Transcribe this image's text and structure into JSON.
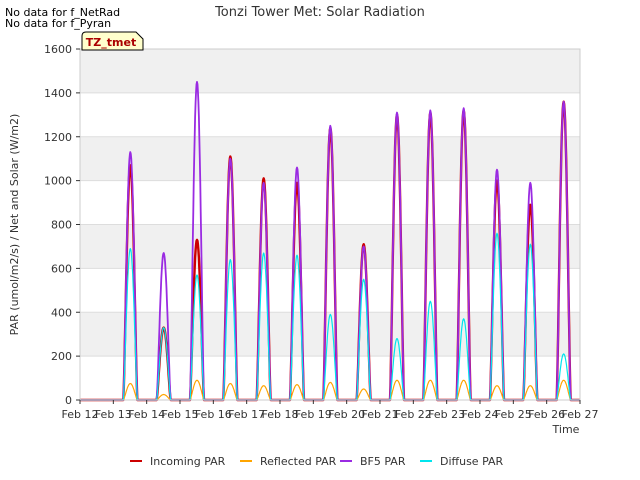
{
  "nodata_lines": [
    "No data for f_NetRad",
    "No data for f_Pyran"
  ],
  "chart_data": {
    "type": "line",
    "title": "Tonzi Tower Met: Solar Radiation",
    "xlabel": "Time",
    "ylabel": "PAR (umol/m2/s) / Net and Solar (W/m2)",
    "annotation": "TZ_tmet",
    "xlim": [
      12,
      27
    ],
    "ylim": [
      0,
      1600
    ],
    "yticks": [
      0,
      200,
      400,
      600,
      800,
      1000,
      1200,
      1400,
      1600
    ],
    "xticks": [
      12,
      13,
      14,
      15,
      16,
      17,
      18,
      19,
      20,
      21,
      22,
      23,
      24,
      25,
      26,
      27
    ],
    "xtick_labels": [
      "Feb 12",
      "Feb 13",
      "Feb 14",
      "Feb 15",
      "Feb 16",
      "Feb 17",
      "Feb 18",
      "Feb 19",
      "Feb 20",
      "Feb 21",
      "Feb 22",
      "Feb 23",
      "Feb 24",
      "Feb 25",
      "Feb 26",
      "Feb 27"
    ],
    "legend_position": "bottom",
    "series": [
      {
        "name": "Incoming PAR",
        "color": "#cc0000",
        "values": [
          0,
          1070,
          330,
          730,
          1110,
          1010,
          990,
          1240,
          710,
          1300,
          1310,
          1320,
          1000,
          890,
          1360
        ]
      },
      {
        "name": "Reflected PAR",
        "color": "#ffa500",
        "values": [
          0,
          75,
          25,
          90,
          75,
          65,
          70,
          80,
          50,
          90,
          90,
          90,
          65,
          65,
          90
        ]
      },
      {
        "name": "BF5 PAR",
        "color": "#9a2be2",
        "values": [
          0,
          1130,
          670,
          1450,
          1100,
          990,
          1060,
          1250,
          700,
          1310,
          1320,
          1330,
          1050,
          990,
          1360
        ]
      },
      {
        "name": "Diffuse PAR",
        "color": "#00e5ee",
        "values": [
          0,
          690,
          330,
          570,
          640,
          670,
          660,
          390,
          550,
          280,
          450,
          370,
          760,
          710,
          210
        ]
      }
    ]
  }
}
